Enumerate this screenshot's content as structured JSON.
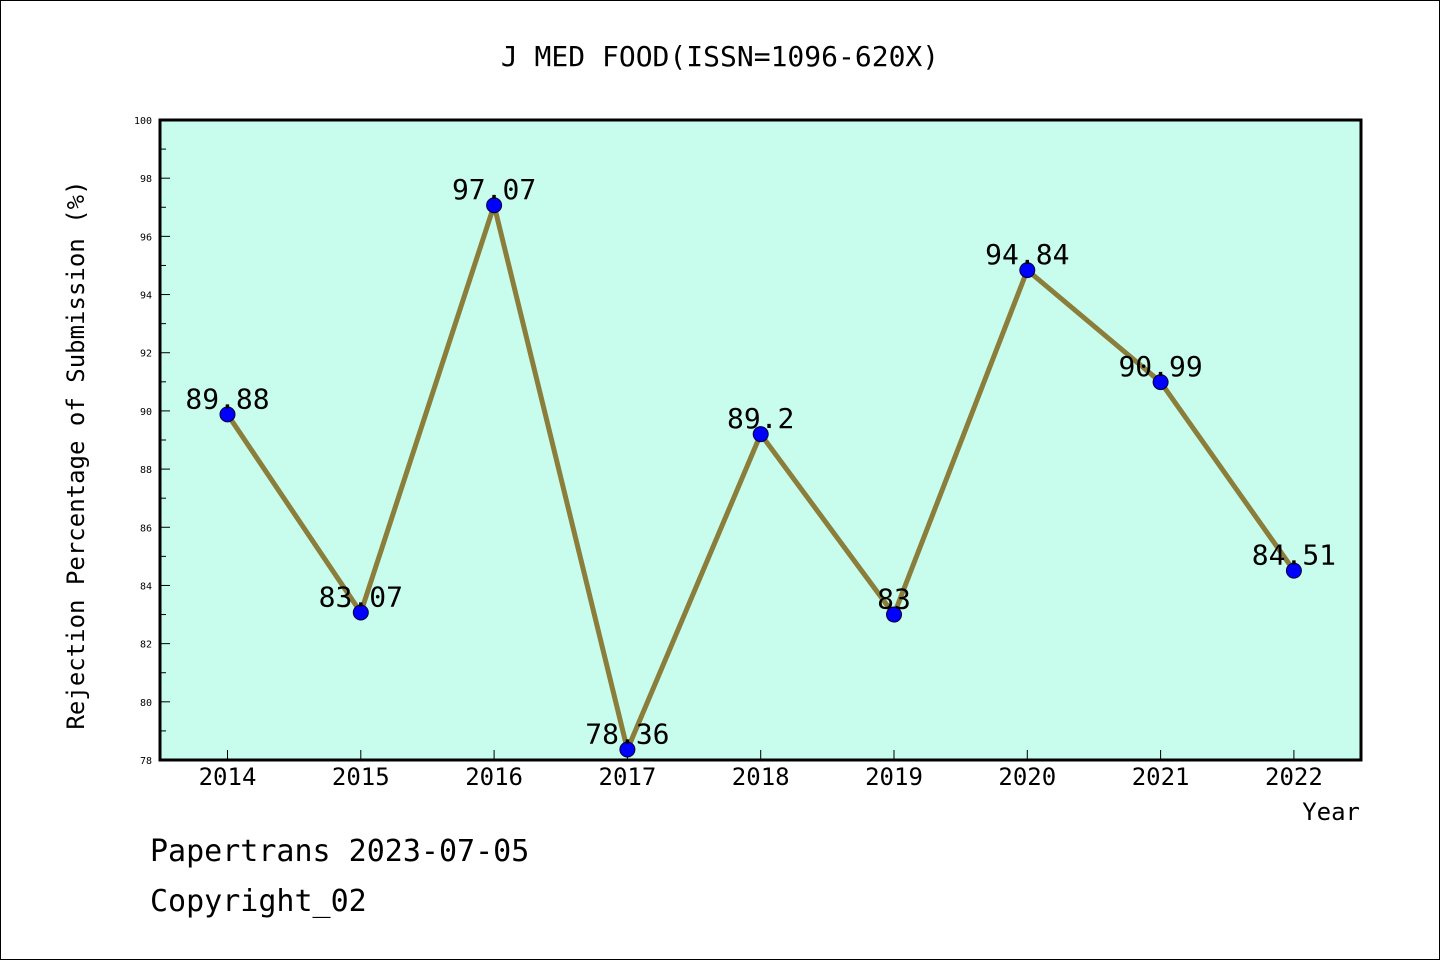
{
  "chart_data": {
    "type": "line",
    "title": "J MED FOOD(ISSN=1096-620X)",
    "xlabel": "Year",
    "ylabel": "Rejection Percentage of Submission (%)",
    "categories": [
      "2014",
      "2015",
      "2016",
      "2017",
      "2018",
      "2019",
      "2020",
      "2021",
      "2022"
    ],
    "values": [
      89.88,
      83.07,
      97.07,
      78.36,
      89.2,
      83,
      94.84,
      90.99,
      84.51
    ],
    "data_labels": [
      "89.88",
      "83.07",
      "97.07",
      "78.36",
      "89.2",
      "83",
      "94.84",
      "90.99",
      "84.51"
    ],
    "ylim": [
      78,
      100
    ],
    "yticks": [
      78,
      80,
      82,
      84,
      86,
      88,
      90,
      92,
      94,
      96,
      98,
      100
    ],
    "grid": false,
    "colors": {
      "plot_background": "#c8fced",
      "line": "#8b7d3a",
      "marker": "#0000ff"
    }
  },
  "footer": {
    "line1": "Papertrans 2023-07-05",
    "line2": "Copyright_02"
  }
}
